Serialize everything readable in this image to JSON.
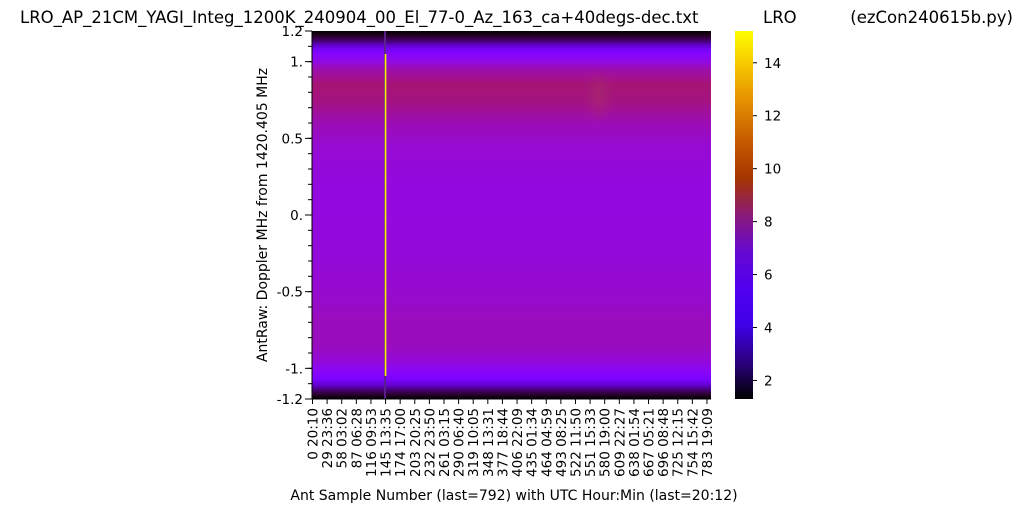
{
  "header": {
    "title": "LRO_AP_21CM_YAGI_Integ_1200K_240904_00_El_77-0_Az_163_ca+40degs-dec.txt",
    "site": "LRO",
    "program": "(ezCon240615b.py)"
  },
  "chart_data": {
    "type": "heatmap",
    "title": "LRO_AP_21CM_YAGI_Integ_1200K_240904_00_El_77-0_Az_163_ca+40degs-dec.txt",
    "xlabel": "Ant Sample Number (last=792) with UTC Hour:Min (last=20:12)",
    "ylabel": "AntRaw:  Doppler MHz from 1420.405 MHz",
    "xlim": [
      0,
      792
    ],
    "ylim": [
      -1.2,
      1.2
    ],
    "x_ticks": [
      {
        "sample": 0,
        "label": "0  20:10"
      },
      {
        "sample": 29,
        "label": "29  23:36"
      },
      {
        "sample": 58,
        "label": "58  03:02"
      },
      {
        "sample": 87,
        "label": "87  06:28"
      },
      {
        "sample": 116,
        "label": "116  09:53"
      },
      {
        "sample": 145,
        "label": "145  13:35"
      },
      {
        "sample": 174,
        "label": "174  17:00"
      },
      {
        "sample": 203,
        "label": "203  20:25"
      },
      {
        "sample": 232,
        "label": "232  23:50"
      },
      {
        "sample": 261,
        "label": "261  03:15"
      },
      {
        "sample": 290,
        "label": "290  06:40"
      },
      {
        "sample": 319,
        "label": "319  10:05"
      },
      {
        "sample": 348,
        "label": "348  13:31"
      },
      {
        "sample": 377,
        "label": "377  18:44"
      },
      {
        "sample": 406,
        "label": "406  22:09"
      },
      {
        "sample": 435,
        "label": "435  01:34"
      },
      {
        "sample": 464,
        "label": "464  04:59"
      },
      {
        "sample": 493,
        "label": "493  08:25"
      },
      {
        "sample": 522,
        "label": "522  11:50"
      },
      {
        "sample": 551,
        "label": "551  15:33"
      },
      {
        "sample": 580,
        "label": "580  19:00"
      },
      {
        "sample": 609,
        "label": "609  22:27"
      },
      {
        "sample": 638,
        "label": "638  01:54"
      },
      {
        "sample": 667,
        "label": "667  05:21"
      },
      {
        "sample": 696,
        "label": "696  08:48"
      },
      {
        "sample": 725,
        "label": "725  12:15"
      },
      {
        "sample": 754,
        "label": "754  15:42"
      },
      {
        "sample": 783,
        "label": "783  19:09"
      }
    ],
    "y_ticks": [
      {
        "value": 1.2,
        "label": "1.2"
      },
      {
        "value": 1.0,
        "label": "1."
      },
      {
        "value": 0.5,
        "label": "0.5"
      },
      {
        "value": 0.0,
        "label": "0."
      },
      {
        "value": -0.5,
        "label": "-0.5"
      },
      {
        "value": -1.0,
        "label": "-1."
      },
      {
        "value": -1.2,
        "label": "-1.2"
      }
    ],
    "colorbar": {
      "colormap": "gnuplot",
      "range": [
        1.3,
        15.2
      ],
      "ticks": [
        2,
        4,
        6,
        8,
        10,
        12,
        14
      ]
    },
    "profile": [
      {
        "mhz": 1.2,
        "value": 1.3
      },
      {
        "mhz": 1.17,
        "value": 1.6
      },
      {
        "mhz": 1.14,
        "value": 2.2
      },
      {
        "mhz": 1.11,
        "value": 3.2
      },
      {
        "mhz": 1.08,
        "value": 4.3
      },
      {
        "mhz": 1.05,
        "value": 5.1
      },
      {
        "mhz": 1.0,
        "value": 5.8
      },
      {
        "mhz": 0.95,
        "value": 6.6
      },
      {
        "mhz": 0.85,
        "value": 7.2
      },
      {
        "mhz": 0.75,
        "value": 7.1
      },
      {
        "mhz": 0.6,
        "value": 6.5
      },
      {
        "mhz": 0.45,
        "value": 6.1
      },
      {
        "mhz": 0.2,
        "value": 5.9
      },
      {
        "mhz": 0.0,
        "value": 5.9
      },
      {
        "mhz": -0.3,
        "value": 6.0
      },
      {
        "mhz": -0.55,
        "value": 6.2
      },
      {
        "mhz": -0.7,
        "value": 6.4
      },
      {
        "mhz": -0.85,
        "value": 6.4
      },
      {
        "mhz": -0.95,
        "value": 6.0
      },
      {
        "mhz": -1.02,
        "value": 5.3
      },
      {
        "mhz": -1.07,
        "value": 4.6
      },
      {
        "mhz": -1.11,
        "value": 3.4
      },
      {
        "mhz": -1.14,
        "value": 2.4
      },
      {
        "mhz": -1.17,
        "value": 1.7
      },
      {
        "mhz": -1.2,
        "value": 1.3
      }
    ],
    "features": [
      {
        "kind": "spike",
        "sample": 145,
        "value": 15.0,
        "mhz_range": [
          -1.05,
          1.05
        ]
      },
      {
        "kind": "warm-patch",
        "sample_range": [
          540,
          600
        ],
        "mhz_range": [
          0.6,
          0.95
        ],
        "value": 7.6
      }
    ]
  }
}
